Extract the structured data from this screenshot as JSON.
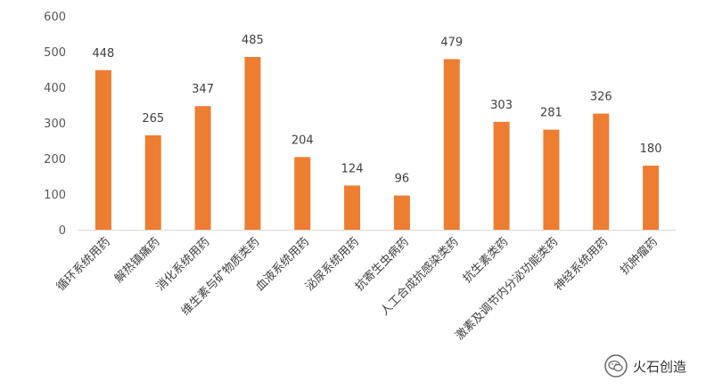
{
  "chart_data": {
    "type": "bar",
    "categories": [
      "循环系统用药",
      "解热镇痛药",
      "消化系统用药",
      "维生素与矿物质类药",
      "血液系统用药",
      "泌尿系统用药",
      "抗寄生虫病药",
      "人工合成抗感染类药",
      "抗生素类药",
      "激素及调节内分泌功能类药",
      "神经系统用药",
      "抗肿瘤药"
    ],
    "values": [
      448,
      265,
      347,
      485,
      204,
      124,
      96,
      479,
      303,
      281,
      326,
      180
    ],
    "yticks": [
      "0",
      "100",
      "200",
      "300",
      "400",
      "500",
      "600"
    ],
    "ylim": [
      0,
      600
    ],
    "grid": false,
    "bar_color": "#ED7D31",
    "axis_color": "#D9D9D9"
  },
  "watermark": {
    "text": "火石创造",
    "icon": "wechat-icon"
  }
}
